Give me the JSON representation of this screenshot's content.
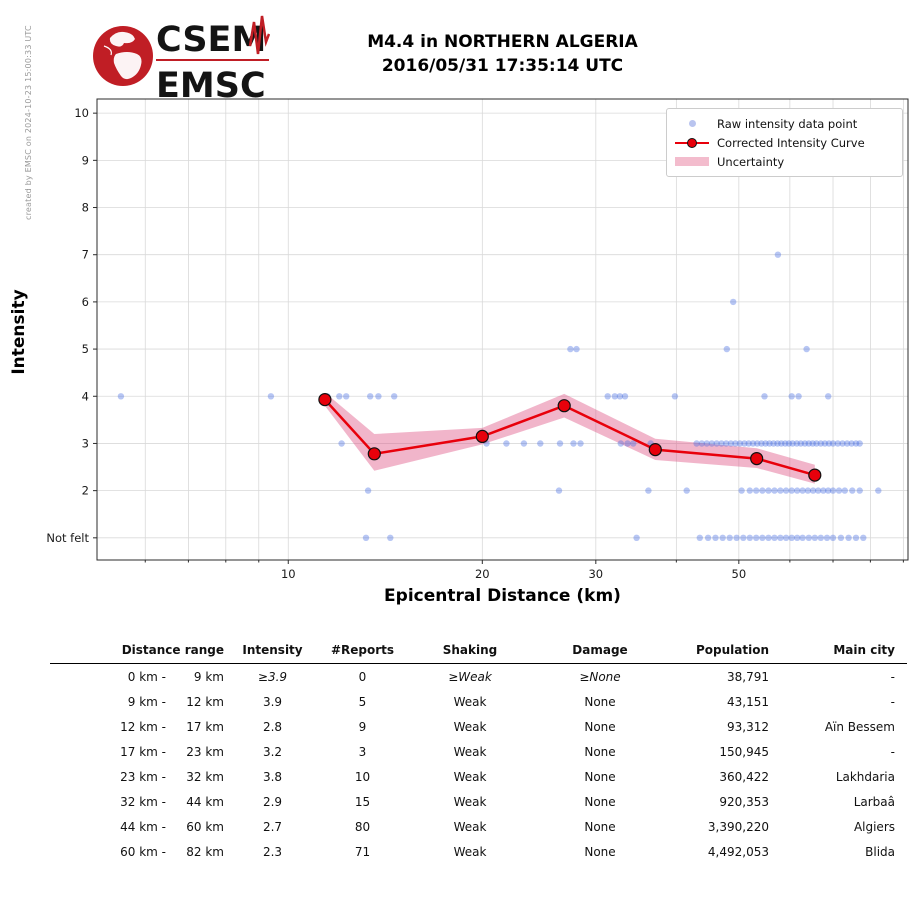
{
  "credit": "created by EMSC on 2024-10-23 15:00:33 UTC",
  "logo": {
    "top": "CSEM",
    "bottom": "EMSC",
    "brand_color": "#c01e25"
  },
  "title": {
    "line1": "M4.4 in NORTHERN ALGERIA",
    "line2": "2016/05/31 17:35:14 UTC"
  },
  "chart_data": {
    "type": "scatter",
    "title": "M4.4 in NORTHERN ALGERIA 2016/05/31 17:35:14 UTC",
    "xlabel": "Epicentral Distance (km)",
    "ylabel": "Intensity",
    "xscale": "log",
    "xlim": [
      5.05,
      91.5
    ],
    "ylim": [
      0.53,
      10.3
    ],
    "grid": true,
    "legend_position": "upper right",
    "colors": {
      "raw": "#4169e1",
      "curve": "#e8000b",
      "band": "#e05c8a"
    },
    "legend": [
      {
        "label": "Raw intensity data point",
        "type": "dot"
      },
      {
        "label": "Corrected Intensity Curve",
        "type": "line-marker"
      },
      {
        "label": "Uncertainty",
        "type": "band"
      }
    ],
    "yticks": [
      {
        "v": 1,
        "label": "Not felt"
      },
      {
        "v": 2,
        "label": "2"
      },
      {
        "v": 3,
        "label": "3"
      },
      {
        "v": 4,
        "label": "4"
      },
      {
        "v": 5,
        "label": "5"
      },
      {
        "v": 6,
        "label": "6"
      },
      {
        "v": 7,
        "label": "7"
      },
      {
        "v": 8,
        "label": "8"
      },
      {
        "v": 9,
        "label": "9"
      },
      {
        "v": 10,
        "label": "10"
      }
    ],
    "xticks": [
      {
        "v": 6
      },
      {
        "v": 7
      },
      {
        "v": 8
      },
      {
        "v": 9
      },
      {
        "v": 10,
        "label": "10"
      },
      {
        "v": 20,
        "label": "20"
      },
      {
        "v": 30,
        "label": "30"
      },
      {
        "v": 40
      },
      {
        "v": 50,
        "label": "50"
      },
      {
        "v": 60
      },
      {
        "v": 70
      },
      {
        "v": 80
      },
      {
        "v": 90
      }
    ],
    "corrected_curve": [
      [
        11.4,
        3.93
      ],
      [
        13.6,
        2.78
      ],
      [
        20,
        3.15
      ],
      [
        26.8,
        3.8
      ],
      [
        37.1,
        2.87
      ],
      [
        53.3,
        2.68
      ],
      [
        65.6,
        2.33
      ]
    ],
    "uncertainty_band": [
      [
        11.4,
        4.08,
        3.8
      ],
      [
        13.6,
        3.2,
        2.42
      ],
      [
        20,
        3.33,
        2.98
      ],
      [
        26.8,
        4.05,
        3.55
      ],
      [
        37.1,
        3.1,
        2.65
      ],
      [
        53.3,
        2.9,
        2.48
      ],
      [
        65.6,
        2.55,
        2.15
      ]
    ],
    "raw_points": [
      [
        5.5,
        4
      ],
      [
        9.4,
        4
      ],
      [
        11.5,
        4
      ],
      [
        12.0,
        4
      ],
      [
        12.3,
        4
      ],
      [
        13.4,
        4
      ],
      [
        13.8,
        4
      ],
      [
        14.6,
        4
      ],
      [
        31.3,
        4
      ],
      [
        32.1,
        4
      ],
      [
        32.7,
        4
      ],
      [
        33.3,
        4
      ],
      [
        39.8,
        4
      ],
      [
        54.8,
        4
      ],
      [
        60.4,
        4
      ],
      [
        61.9,
        4
      ],
      [
        68.8,
        4
      ],
      [
        12.1,
        3
      ],
      [
        20.3,
        3
      ],
      [
        21.8,
        3
      ],
      [
        23.2,
        3
      ],
      [
        24.6,
        3
      ],
      [
        26.4,
        3
      ],
      [
        27.7,
        3
      ],
      [
        28.4,
        3
      ],
      [
        32.8,
        3
      ],
      [
        33.6,
        3
      ],
      [
        34.3,
        3
      ],
      [
        36.5,
        3
      ],
      [
        43.0,
        3
      ],
      [
        43.8,
        3
      ],
      [
        44.6,
        3
      ],
      [
        45.4,
        3
      ],
      [
        46.2,
        3
      ],
      [
        47.0,
        3
      ],
      [
        47.8,
        3
      ],
      [
        48.6,
        3
      ],
      [
        49.4,
        3
      ],
      [
        50.2,
        3
      ],
      [
        51.0,
        3
      ],
      [
        51.8,
        3
      ],
      [
        52.6,
        3
      ],
      [
        53.4,
        3
      ],
      [
        54.2,
        3
      ],
      [
        55.0,
        3
      ],
      [
        55.8,
        3
      ],
      [
        56.6,
        3
      ],
      [
        57.4,
        3
      ],
      [
        58.2,
        3
      ],
      [
        59.0,
        3
      ],
      [
        59.8,
        3
      ],
      [
        60.6,
        3
      ],
      [
        61.5,
        3
      ],
      [
        62.4,
        3
      ],
      [
        63.3,
        3
      ],
      [
        64.2,
        3
      ],
      [
        65.1,
        3
      ],
      [
        66.0,
        3
      ],
      [
        67.0,
        3
      ],
      [
        68.0,
        3
      ],
      [
        69.0,
        3
      ],
      [
        70.0,
        3
      ],
      [
        71.2,
        3
      ],
      [
        72.4,
        3
      ],
      [
        73.6,
        3
      ],
      [
        74.8,
        3
      ],
      [
        76.0,
        3
      ],
      [
        77.0,
        3
      ],
      [
        27.4,
        5
      ],
      [
        28.0,
        5
      ],
      [
        47.9,
        5
      ],
      [
        63.7,
        5
      ],
      [
        49.0,
        6
      ],
      [
        57.5,
        7
      ],
      [
        13.3,
        2
      ],
      [
        26.3,
        2
      ],
      [
        36.2,
        2
      ],
      [
        41.5,
        2
      ],
      [
        50.5,
        2
      ],
      [
        52.0,
        2
      ],
      [
        53.2,
        2
      ],
      [
        54.4,
        2
      ],
      [
        55.6,
        2
      ],
      [
        56.8,
        2
      ],
      [
        58.0,
        2
      ],
      [
        59.2,
        2
      ],
      [
        60.4,
        2
      ],
      [
        61.6,
        2
      ],
      [
        62.8,
        2
      ],
      [
        64.0,
        2
      ],
      [
        65.2,
        2
      ],
      [
        66.4,
        2
      ],
      [
        67.6,
        2
      ],
      [
        68.8,
        2
      ],
      [
        70.0,
        2
      ],
      [
        71.5,
        2
      ],
      [
        73.0,
        2
      ],
      [
        75.0,
        2
      ],
      [
        77.0,
        2
      ],
      [
        82.3,
        2
      ],
      [
        13.2,
        1
      ],
      [
        14.4,
        1
      ],
      [
        34.7,
        1
      ],
      [
        43.5,
        1
      ],
      [
        44.8,
        1
      ],
      [
        46.0,
        1
      ],
      [
        47.2,
        1
      ],
      [
        48.4,
        1
      ],
      [
        49.6,
        1
      ],
      [
        50.8,
        1
      ],
      [
        52.0,
        1
      ],
      [
        53.2,
        1
      ],
      [
        54.4,
        1
      ],
      [
        55.6,
        1
      ],
      [
        56.8,
        1
      ],
      [
        58.0,
        1
      ],
      [
        59.2,
        1
      ],
      [
        60.4,
        1
      ],
      [
        61.6,
        1
      ],
      [
        62.8,
        1
      ],
      [
        64.2,
        1
      ],
      [
        65.6,
        1
      ],
      [
        67.0,
        1
      ],
      [
        68.5,
        1
      ],
      [
        70.0,
        1
      ],
      [
        72.0,
        1
      ],
      [
        74.0,
        1
      ],
      [
        76.0,
        1
      ],
      [
        78.0,
        1
      ]
    ]
  },
  "table": {
    "headers": [
      "Distance range",
      "Intensity",
      "#Reports",
      "Shaking",
      "Damage",
      "Population",
      "Main city"
    ],
    "rows": [
      {
        "range_from": "0 km -",
        "range_to": "9 km",
        "intensity": "≥3.9",
        "reports": "0",
        "shaking": "≥Weak",
        "damage": "≥None",
        "population": "38,791",
        "city": "-",
        "italic": true
      },
      {
        "range_from": "9 km -",
        "range_to": "12 km",
        "intensity": "3.9",
        "reports": "5",
        "shaking": "Weak",
        "damage": "None",
        "population": "43,151",
        "city": "-",
        "italic": false
      },
      {
        "range_from": "12 km -",
        "range_to": "17 km",
        "intensity": "2.8",
        "reports": "9",
        "shaking": "Weak",
        "damage": "None",
        "population": "93,312",
        "city": "Aïn Bessem",
        "italic": false
      },
      {
        "range_from": "17 km -",
        "range_to": "23 km",
        "intensity": "3.2",
        "reports": "3",
        "shaking": "Weak",
        "damage": "None",
        "population": "150,945",
        "city": "-",
        "italic": false
      },
      {
        "range_from": "23 km -",
        "range_to": "32 km",
        "intensity": "3.8",
        "reports": "10",
        "shaking": "Weak",
        "damage": "None",
        "population": "360,422",
        "city": "Lakhdaria",
        "italic": false
      },
      {
        "range_from": "32 km -",
        "range_to": "44 km",
        "intensity": "2.9",
        "reports": "15",
        "shaking": "Weak",
        "damage": "None",
        "population": "920,353",
        "city": "Larbaâ",
        "italic": false
      },
      {
        "range_from": "44 km -",
        "range_to": "60 km",
        "intensity": "2.7",
        "reports": "80",
        "shaking": "Weak",
        "damage": "None",
        "population": "3,390,220",
        "city": "Algiers",
        "italic": false
      },
      {
        "range_from": "60 km -",
        "range_to": "82 km",
        "intensity": "2.3",
        "reports": "71",
        "shaking": "Weak",
        "damage": "None",
        "population": "4,492,053",
        "city": "Blida",
        "italic": false
      }
    ]
  }
}
